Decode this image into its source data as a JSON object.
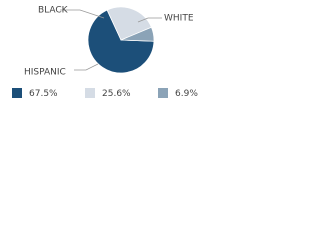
{
  "chart_data": {
    "type": "pie",
    "categories": [
      "HISPANIC",
      "WHITE",
      "BLACK"
    ],
    "values": [
      67.5,
      25.6,
      6.9
    ],
    "value_labels": [
      "67.5%",
      "25.6%",
      "6.9%"
    ],
    "colors": [
      "#1c4f79",
      "#d5dce5",
      "#8ba3b7"
    ]
  }
}
